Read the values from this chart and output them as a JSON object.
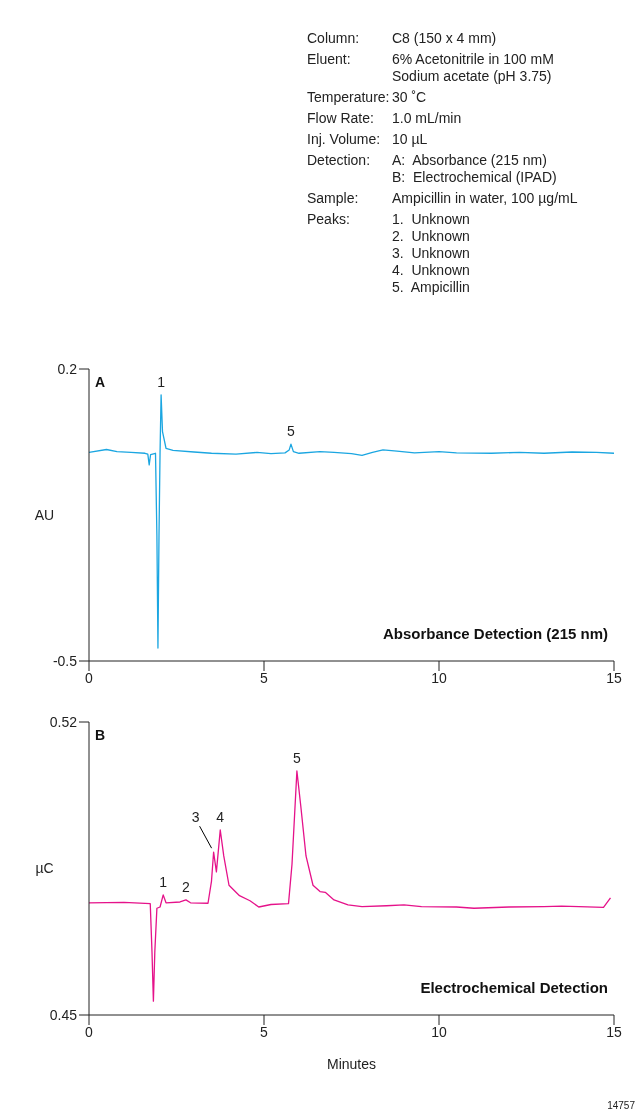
{
  "chart_data": [
    {
      "type": "other",
      "annotations": [
        "Column:",
        "C8 (150 x 4 mm)",
        "Eluent:",
        "6% Acetonitrile in 100 mM\nSodium acetate (pH 3.75)",
        "Temperature:",
        "30 ˚C",
        "Flow Rate:",
        "1.0 mL/min",
        "Inj. Volume:",
        "10 µL",
        "Detection:",
        "A:  Absorbance (215 nm)\nB:  Electrochemical (IPAD)",
        "Sample:",
        "Ampicillin in water, 100 µg/mL",
        "Peaks:",
        "1.  Unknown\n2.  Unknown\n3.  Unknown\n4.  Unknown\n5.  Ampicillin"
      ]
    },
    {
      "type": "line",
      "title": "Absorbance Detection (215 nm)",
      "ylabel": "AU",
      "color": "#1ba6e1",
      "x": [
        0,
        0.5,
        0.8,
        1.2,
        1.6,
        1.68,
        1.72,
        1.76,
        1.9,
        1.94,
        1.97,
        2.0,
        2.03,
        2.06,
        2.1,
        2.2,
        2.4,
        3.0,
        3.5,
        4.2,
        4.8,
        5.2,
        5.6,
        5.72,
        5.77,
        5.84,
        6.0,
        6.6,
        7.0,
        7.5,
        7.8,
        8.1,
        8.4,
        8.8,
        9.3,
        10.0,
        10.5,
        11.5,
        12.3,
        13.0,
        13.8,
        14.5,
        15.0
      ],
      "values": [
        0.0,
        0.007,
        0.002,
        0.0,
        -0.002,
        -0.004,
        -0.03,
        -0.005,
        -0.002,
        -0.2,
        -0.469,
        -0.2,
        0.0,
        0.138,
        0.05,
        0.01,
        0.005,
        0.001,
        -0.002,
        -0.004,
        0.0,
        -0.003,
        -0.001,
        0.006,
        0.02,
        0.002,
        -0.002,
        0.002,
        0.0,
        -0.003,
        -0.007,
        0.0,
        0.006,
        0.003,
        -0.001,
        0.002,
        -0.001,
        -0.002,
        0.0,
        -0.002,
        0.001,
        0.0,
        -0.002
      ],
      "xlim": [
        0,
        15
      ],
      "xticks": [
        0,
        5,
        10,
        15
      ],
      "ylim": [
        -0.5,
        0.2
      ],
      "yticks": [
        -0.5,
        0.2
      ],
      "annotations": [
        "A",
        {
          "text": "1",
          "x": 2.06,
          "y": 0.138
        },
        {
          "text": "5",
          "x": 5.77,
          "y": 0.02
        }
      ]
    },
    {
      "type": "line",
      "title": "Electrochemical Detection",
      "ylabel": "µC",
      "xlabel": "Minutes",
      "color": "#e5128a",
      "x": [
        0,
        1.0,
        1.75,
        1.8,
        1.84,
        1.88,
        1.94,
        2.03,
        2.12,
        2.2,
        2.6,
        2.77,
        2.9,
        3.4,
        3.5,
        3.56,
        3.64,
        3.75,
        3.85,
        4.0,
        4.3,
        4.6,
        4.85,
        5.2,
        5.7,
        5.8,
        5.94,
        6.05,
        6.2,
        6.4,
        6.6,
        6.75,
        7.0,
        7.4,
        7.8,
        8.5,
        9.0,
        9.5,
        10.5,
        11.0,
        12.0,
        13.0,
        13.5,
        14.0,
        14.7,
        14.9
      ],
      "values": [
        0.4768,
        0.4769,
        0.4766,
        0.465,
        0.4533,
        0.465,
        0.4755,
        0.4758,
        0.4787,
        0.4768,
        0.477,
        0.4775,
        0.4768,
        0.4767,
        0.482,
        0.4889,
        0.4842,
        0.4942,
        0.488,
        0.481,
        0.4785,
        0.4773,
        0.4758,
        0.4764,
        0.4766,
        0.486,
        0.5083,
        0.5,
        0.488,
        0.481,
        0.4795,
        0.4793,
        0.4775,
        0.4763,
        0.4759,
        0.4761,
        0.4763,
        0.4759,
        0.4758,
        0.4755,
        0.4758,
        0.4759,
        0.476,
        0.4759,
        0.4757,
        0.478
      ],
      "xlim": [
        0,
        15
      ],
      "xticks": [
        0,
        5,
        10,
        15
      ],
      "ylim": [
        0.45,
        0.52
      ],
      "yticks": [
        0.45,
        0.52
      ],
      "annotations": [
        "B",
        {
          "text": "1",
          "x": 2.12,
          "y": 0.4787
        },
        {
          "text": "2",
          "x": 2.77,
          "y": 0.4775
        },
        {
          "text": "3",
          "x": 3.56,
          "y": 0.4889
        },
        {
          "text": "4",
          "x": 3.75,
          "y": 0.4942
        },
        {
          "text": "5",
          "x": 5.94,
          "y": 0.5083
        },
        "14757"
      ]
    }
  ]
}
